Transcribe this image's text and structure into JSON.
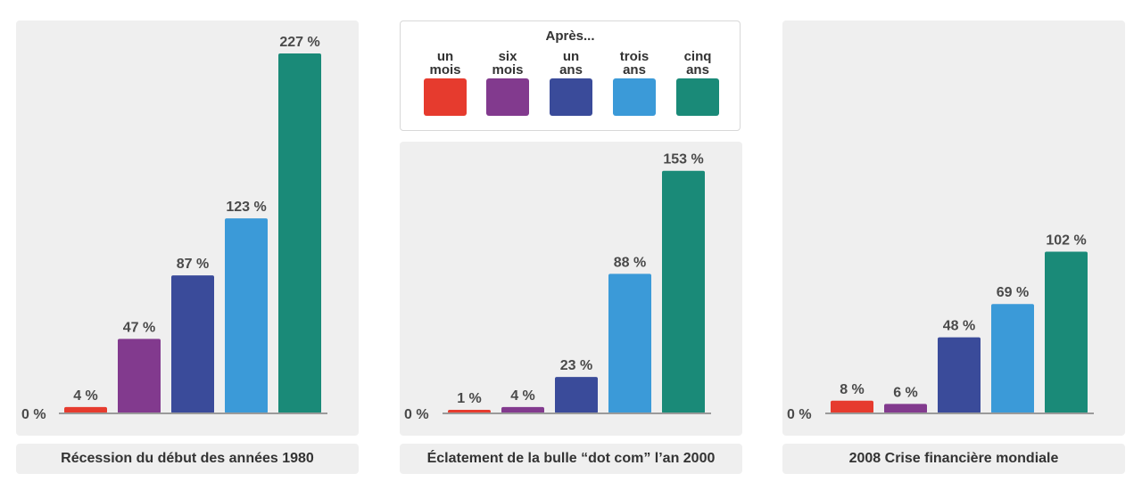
{
  "legend": {
    "title": "Après...",
    "items": [
      {
        "line1": "un",
        "line2": "mois",
        "color": "#e63b2e"
      },
      {
        "line1": "six",
        "line2": "mois",
        "color": "#823a8e"
      },
      {
        "line1": "un",
        "line2": "ans",
        "color": "#3a4b9a"
      },
      {
        "line1": "trois",
        "line2": "ans",
        "color": "#3b9ad8"
      },
      {
        "line1": "cinq",
        "line2": "ans",
        "color": "#1a8a78"
      }
    ]
  },
  "captions": [
    "Récession du début des années 1980",
    "Éclatement de la bulle “dot com” l’an 2000",
    "2008 Crise financière mondiale"
  ],
  "chart_data": [
    {
      "type": "bar",
      "title": "Récession du début des années 1980",
      "categories": [
        "un mois",
        "six mois",
        "un ans",
        "trois ans",
        "cinq ans"
      ],
      "values": [
        4,
        47,
        87,
        123,
        227
      ],
      "labels": [
        "4 %",
        "47 %",
        "87 %",
        "123 %",
        "227 %"
      ],
      "zero_label": "0 %",
      "ylim": [
        0,
        227
      ]
    },
    {
      "type": "bar",
      "title": "Éclatement de la bulle “dot com” l’an 2000",
      "categories": [
        "un mois",
        "six mois",
        "un ans",
        "trois ans",
        "cinq ans"
      ],
      "values": [
        1,
        4,
        23,
        88,
        153
      ],
      "labels": [
        "1 %",
        "4 %",
        "23 %",
        "88 %",
        "153 %"
      ],
      "zero_label": "0 %",
      "ylim": [
        0,
        227
      ]
    },
    {
      "type": "bar",
      "title": "2008 Crise financière mondiale",
      "categories": [
        "un mois",
        "six mois",
        "un ans",
        "trois ans",
        "cinq ans"
      ],
      "values": [
        8,
        6,
        48,
        69,
        102
      ],
      "labels": [
        "8 %",
        "6 %",
        "48 %",
        "69 %",
        "102 %"
      ],
      "zero_label": "0 %",
      "ylim": [
        0,
        227
      ]
    }
  ]
}
